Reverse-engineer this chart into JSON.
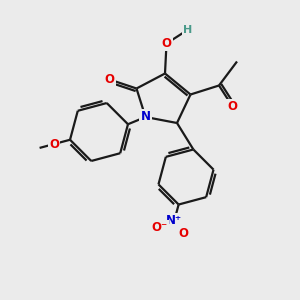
{
  "bg_color": "#ebebeb",
  "bond_color": "#1a1a1a",
  "bond_width": 1.6,
  "dbl_sep": 0.09,
  "atom_colors": {
    "O": "#e60000",
    "N": "#0000cc",
    "C": "#1a1a1a",
    "H": "#4a9a8a"
  },
  "font_size": 8.5,
  "ring_r": 1.0,
  "ring2_r": 0.95
}
